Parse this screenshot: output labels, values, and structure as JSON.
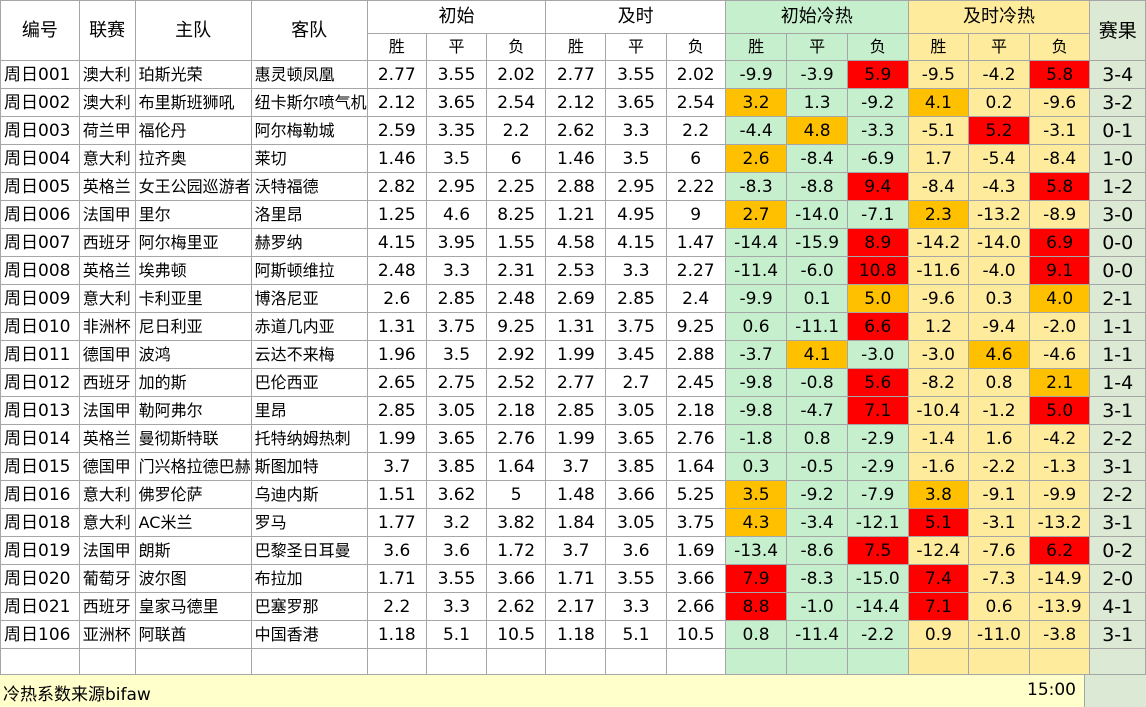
{
  "headers": {
    "id": "编号",
    "league": "联赛",
    "home": "主队",
    "away": "客队",
    "initial": "初始",
    "live": "及时",
    "initial_heat": "初始冷热",
    "live_heat": "及时冷热",
    "result": "赛果",
    "win": "胜",
    "draw": "平",
    "lose": "负"
  },
  "colors": {
    "green": "#c6efce",
    "yellow": "#ffeb9c",
    "red": "#ff0000",
    "orange": "#ffc000"
  },
  "rows": [
    {
      "id": "周日001",
      "league": "澳大利",
      "home": "珀斯光荣",
      "away": "惠灵顿凤凰",
      "o": [
        "2.77",
        "3.55",
        "2.02"
      ],
      "l": [
        "2.77",
        "3.55",
        "2.02"
      ],
      "ih": [
        "-9.9",
        "-3.9",
        "5.9"
      ],
      "ihc": [
        "",
        "",
        "r"
      ],
      "lh": [
        "-9.5",
        "-4.2",
        "5.8"
      ],
      "lhc": [
        "",
        "",
        "r"
      ],
      "res": "3-4"
    },
    {
      "id": "周日002",
      "league": "澳大利",
      "home": "布里斯班狮吼",
      "away": "纽卡斯尔喷气机",
      "o": [
        "2.12",
        "3.65",
        "2.54"
      ],
      "l": [
        "2.12",
        "3.65",
        "2.54"
      ],
      "ih": [
        "3.2",
        "1.3",
        "-9.2"
      ],
      "ihc": [
        "o",
        "",
        ""
      ],
      "lh": [
        "4.1",
        "0.2",
        "-9.6"
      ],
      "lhc": [
        "o",
        "",
        ""
      ],
      "res": "3-2"
    },
    {
      "id": "周日003",
      "league": "荷兰甲",
      "home": "福伦丹",
      "away": "阿尔梅勒城",
      "o": [
        "2.59",
        "3.35",
        "2.2"
      ],
      "l": [
        "2.62",
        "3.3",
        "2.2"
      ],
      "ih": [
        "-4.4",
        "4.8",
        "-3.3"
      ],
      "ihc": [
        "",
        "o",
        ""
      ],
      "lh": [
        "-5.1",
        "5.2",
        "-3.1"
      ],
      "lhc": [
        "",
        "r",
        ""
      ],
      "res": "0-1"
    },
    {
      "id": "周日004",
      "league": "意大利",
      "home": "拉齐奥",
      "away": "莱切",
      "o": [
        "1.46",
        "3.5",
        "6"
      ],
      "l": [
        "1.46",
        "3.5",
        "6"
      ],
      "ih": [
        "2.6",
        "-8.4",
        "-6.9"
      ],
      "ihc": [
        "o",
        "",
        ""
      ],
      "lh": [
        "1.7",
        "-5.4",
        "-8.4"
      ],
      "lhc": [
        "",
        "",
        ""
      ],
      "res": "1-0"
    },
    {
      "id": "周日005",
      "league": "英格兰",
      "home": "女王公园巡游者",
      "away": "沃特福德",
      "o": [
        "2.82",
        "2.95",
        "2.25"
      ],
      "l": [
        "2.88",
        "2.95",
        "2.22"
      ],
      "ih": [
        "-8.3",
        "-8.8",
        "9.4"
      ],
      "ihc": [
        "",
        "",
        "r"
      ],
      "lh": [
        "-8.4",
        "-4.3",
        "5.8"
      ],
      "lhc": [
        "",
        "",
        "r"
      ],
      "res": "1-2"
    },
    {
      "id": "周日006",
      "league": "法国甲",
      "home": "里尔",
      "away": "洛里昂",
      "o": [
        "1.25",
        "4.6",
        "8.25"
      ],
      "l": [
        "1.21",
        "4.95",
        "9"
      ],
      "ih": [
        "2.7",
        "-14.0",
        "-7.1"
      ],
      "ihc": [
        "o",
        "",
        ""
      ],
      "lh": [
        "2.3",
        "-13.2",
        "-8.9"
      ],
      "lhc": [
        "o",
        "",
        ""
      ],
      "res": "3-0"
    },
    {
      "id": "周日007",
      "league": "西班牙",
      "home": "阿尔梅里亚",
      "away": "赫罗纳",
      "o": [
        "4.15",
        "3.95",
        "1.55"
      ],
      "l": [
        "4.58",
        "4.15",
        "1.47"
      ],
      "ih": [
        "-14.4",
        "-15.9",
        "8.9"
      ],
      "ihc": [
        "",
        "",
        "r"
      ],
      "lh": [
        "-14.2",
        "-14.0",
        "6.9"
      ],
      "lhc": [
        "",
        "",
        "r"
      ],
      "res": "0-0"
    },
    {
      "id": "周日008",
      "league": "英格兰",
      "home": "埃弗顿",
      "away": "阿斯顿维拉",
      "o": [
        "2.48",
        "3.3",
        "2.31"
      ],
      "l": [
        "2.53",
        "3.3",
        "2.27"
      ],
      "ih": [
        "-11.4",
        "-6.0",
        "10.8"
      ],
      "ihc": [
        "",
        "",
        "r"
      ],
      "lh": [
        "-11.6",
        "-4.0",
        "9.1"
      ],
      "lhc": [
        "",
        "",
        "r"
      ],
      "res": "0-0"
    },
    {
      "id": "周日009",
      "league": "意大利",
      "home": "卡利亚里",
      "away": "博洛尼亚",
      "o": [
        "2.6",
        "2.85",
        "2.48"
      ],
      "l": [
        "2.69",
        "2.85",
        "2.4"
      ],
      "ih": [
        "-9.9",
        "0.1",
        "5.0"
      ],
      "ihc": [
        "",
        "",
        "o"
      ],
      "lh": [
        "-9.6",
        "0.3",
        "4.0"
      ],
      "lhc": [
        "",
        "",
        "o"
      ],
      "res": "2-1"
    },
    {
      "id": "周日010",
      "league": "非洲杯",
      "home": "尼日利亚",
      "away": "赤道几内亚",
      "o": [
        "1.31",
        "3.75",
        "9.25"
      ],
      "l": [
        "1.31",
        "3.75",
        "9.25"
      ],
      "ih": [
        "0.6",
        "-11.1",
        "6.6"
      ],
      "ihc": [
        "",
        "",
        "r"
      ],
      "lh": [
        "1.2",
        "-9.4",
        "-2.0"
      ],
      "lhc": [
        "",
        "",
        ""
      ],
      "res": "1-1"
    },
    {
      "id": "周日011",
      "league": "德国甲",
      "home": "波鸿",
      "away": "云达不来梅",
      "o": [
        "1.96",
        "3.5",
        "2.92"
      ],
      "l": [
        "1.99",
        "3.45",
        "2.88"
      ],
      "ih": [
        "-3.7",
        "4.1",
        "-3.0"
      ],
      "ihc": [
        "",
        "o",
        ""
      ],
      "lh": [
        "-3.0",
        "4.6",
        "-4.6"
      ],
      "lhc": [
        "",
        "o",
        ""
      ],
      "res": "1-1"
    },
    {
      "id": "周日012",
      "league": "西班牙",
      "home": "加的斯",
      "away": "巴伦西亚",
      "o": [
        "2.65",
        "2.75",
        "2.52"
      ],
      "l": [
        "2.77",
        "2.7",
        "2.45"
      ],
      "ih": [
        "-9.8",
        "-0.8",
        "5.6"
      ],
      "ihc": [
        "",
        "",
        "r"
      ],
      "lh": [
        "-8.2",
        "0.8",
        "2.1"
      ],
      "lhc": [
        "",
        "",
        "o"
      ],
      "res": "1-4"
    },
    {
      "id": "周日013",
      "league": "法国甲",
      "home": "勒阿弗尔",
      "away": "里昂",
      "o": [
        "2.85",
        "3.05",
        "2.18"
      ],
      "l": [
        "2.85",
        "3.05",
        "2.18"
      ],
      "ih": [
        "-9.8",
        "-4.7",
        "7.1"
      ],
      "ihc": [
        "",
        "",
        "r"
      ],
      "lh": [
        "-10.4",
        "-1.2",
        "5.0"
      ],
      "lhc": [
        "",
        "",
        "r"
      ],
      "res": "3-1"
    },
    {
      "id": "周日014",
      "league": "英格兰",
      "home": "曼彻斯特联",
      "away": "托特纳姆热刺",
      "o": [
        "1.99",
        "3.65",
        "2.76"
      ],
      "l": [
        "1.99",
        "3.65",
        "2.76"
      ],
      "ih": [
        "-1.8",
        "0.8",
        "-2.9"
      ],
      "ihc": [
        "",
        "",
        ""
      ],
      "lh": [
        "-1.4",
        "1.6",
        "-4.2"
      ],
      "lhc": [
        "",
        "",
        ""
      ],
      "res": "2-2"
    },
    {
      "id": "周日015",
      "league": "德国甲",
      "home": "门兴格拉德巴赫",
      "away": "斯图加特",
      "o": [
        "3.7",
        "3.85",
        "1.64"
      ],
      "l": [
        "3.7",
        "3.85",
        "1.64"
      ],
      "ih": [
        "0.3",
        "-0.5",
        "-2.9"
      ],
      "ihc": [
        "",
        "",
        ""
      ],
      "lh": [
        "-1.6",
        "-2.2",
        "-1.3"
      ],
      "lhc": [
        "",
        "",
        ""
      ],
      "res": "3-1"
    },
    {
      "id": "周日016",
      "league": "意大利",
      "home": "佛罗伦萨",
      "away": "乌迪内斯",
      "o": [
        "1.51",
        "3.62",
        "5"
      ],
      "l": [
        "1.48",
        "3.66",
        "5.25"
      ],
      "ih": [
        "3.5",
        "-9.2",
        "-7.9"
      ],
      "ihc": [
        "o",
        "",
        ""
      ],
      "lh": [
        "3.8",
        "-9.1",
        "-9.9"
      ],
      "lhc": [
        "o",
        "",
        ""
      ],
      "res": "2-2"
    },
    {
      "id": "周日018",
      "league": "意大利",
      "home": "AC米兰",
      "away": "罗马",
      "o": [
        "1.77",
        "3.2",
        "3.82"
      ],
      "l": [
        "1.84",
        "3.05",
        "3.75"
      ],
      "ih": [
        "4.3",
        "-3.4",
        "-12.1"
      ],
      "ihc": [
        "o",
        "",
        ""
      ],
      "lh": [
        "5.1",
        "-3.1",
        "-13.2"
      ],
      "lhc": [
        "r",
        "",
        ""
      ],
      "res": "3-1"
    },
    {
      "id": "周日019",
      "league": "法国甲",
      "home": "朗斯",
      "away": "巴黎圣日耳曼",
      "o": [
        "3.6",
        "3.6",
        "1.72"
      ],
      "l": [
        "3.7",
        "3.6",
        "1.69"
      ],
      "ih": [
        "-13.4",
        "-8.6",
        "7.5"
      ],
      "ihc": [
        "",
        "",
        "r"
      ],
      "lh": [
        "-12.4",
        "-7.6",
        "6.2"
      ],
      "lhc": [
        "",
        "",
        "r"
      ],
      "res": "0-2"
    },
    {
      "id": "周日020",
      "league": "葡萄牙",
      "home": "波尔图",
      "away": "布拉加",
      "o": [
        "1.71",
        "3.55",
        "3.66"
      ],
      "l": [
        "1.71",
        "3.55",
        "3.66"
      ],
      "ih": [
        "7.9",
        "-8.3",
        "-15.0"
      ],
      "ihc": [
        "r",
        "",
        ""
      ],
      "lh": [
        "7.4",
        "-7.3",
        "-14.9"
      ],
      "lhc": [
        "r",
        "",
        ""
      ],
      "res": "2-0"
    },
    {
      "id": "周日021",
      "league": "西班牙",
      "home": "皇家马德里",
      "away": "巴塞罗那",
      "o": [
        "2.2",
        "3.3",
        "2.62"
      ],
      "l": [
        "2.17",
        "3.3",
        "2.66"
      ],
      "ih": [
        "8.8",
        "-1.0",
        "-14.4"
      ],
      "ihc": [
        "r",
        "",
        ""
      ],
      "lh": [
        "7.1",
        "0.6",
        "-13.9"
      ],
      "lhc": [
        "r",
        "",
        ""
      ],
      "res": "4-1"
    },
    {
      "id": "周日106",
      "league": "亚洲杯",
      "home": "阿联酋",
      "away": "中国香港",
      "o": [
        "1.18",
        "5.1",
        "10.5"
      ],
      "l": [
        "1.18",
        "5.1",
        "10.5"
      ],
      "ih": [
        "0.8",
        "-11.4",
        "-2.2"
      ],
      "ihc": [
        "",
        "",
        ""
      ],
      "lh": [
        "0.9",
        "-11.0",
        "-3.8"
      ],
      "lhc": [
        "",
        "",
        ""
      ],
      "res": "3-1"
    }
  ],
  "footer": {
    "source": "冷热系数来源bifaw",
    "time": "15:00"
  }
}
